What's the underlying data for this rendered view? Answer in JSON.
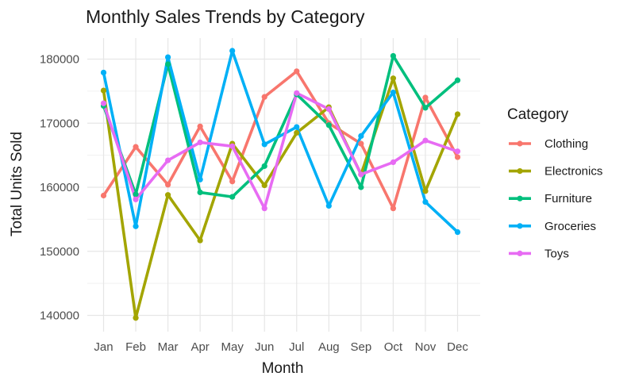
{
  "chart_data": {
    "type": "line",
    "title": "Monthly Sales Trends by Category",
    "xlabel": "Month",
    "ylabel": "Total Units Sold",
    "ylim": [
      137500,
      183000
    ],
    "yticks": [
      140000,
      150000,
      160000,
      170000,
      180000
    ],
    "ytick_labels": [
      "140000",
      "150000",
      "160000",
      "170000",
      "180000"
    ],
    "grid": true,
    "legend_position": "right",
    "legend_title": "Category",
    "categories": [
      "Jan",
      "Feb",
      "Mar",
      "Apr",
      "May",
      "Jun",
      "Jul",
      "Aug",
      "Sep",
      "Oct",
      "Nov",
      "Dec"
    ],
    "series": [
      {
        "name": "Clothing",
        "color": "#F8766D",
        "values": [
          158700,
          166300,
          160400,
          169500,
          160900,
          174100,
          178100,
          170000,
          166800,
          156700,
          174000,
          164700
        ]
      },
      {
        "name": "Electronics",
        "color": "#A3A500",
        "values": [
          175100,
          139600,
          158800,
          151700,
          166800,
          160300,
          168500,
          172500,
          162000,
          177000,
          159400,
          171400
        ]
      },
      {
        "name": "Furniture",
        "color": "#00BF7D",
        "values": [
          172700,
          158900,
          179200,
          159200,
          158500,
          163300,
          174500,
          169700,
          160000,
          180500,
          172400,
          176700
        ]
      },
      {
        "name": "Groceries",
        "color": "#00B0F6",
        "values": [
          177900,
          153900,
          180300,
          161200,
          181300,
          166700,
          169400,
          157100,
          168000,
          174800,
          157700,
          153000
        ]
      },
      {
        "name": "Toys",
        "color": "#E76BF3",
        "values": [
          173100,
          158100,
          164200,
          167000,
          166400,
          156700,
          174700,
          172200,
          162000,
          163900,
          167300,
          165600
        ]
      }
    ]
  }
}
